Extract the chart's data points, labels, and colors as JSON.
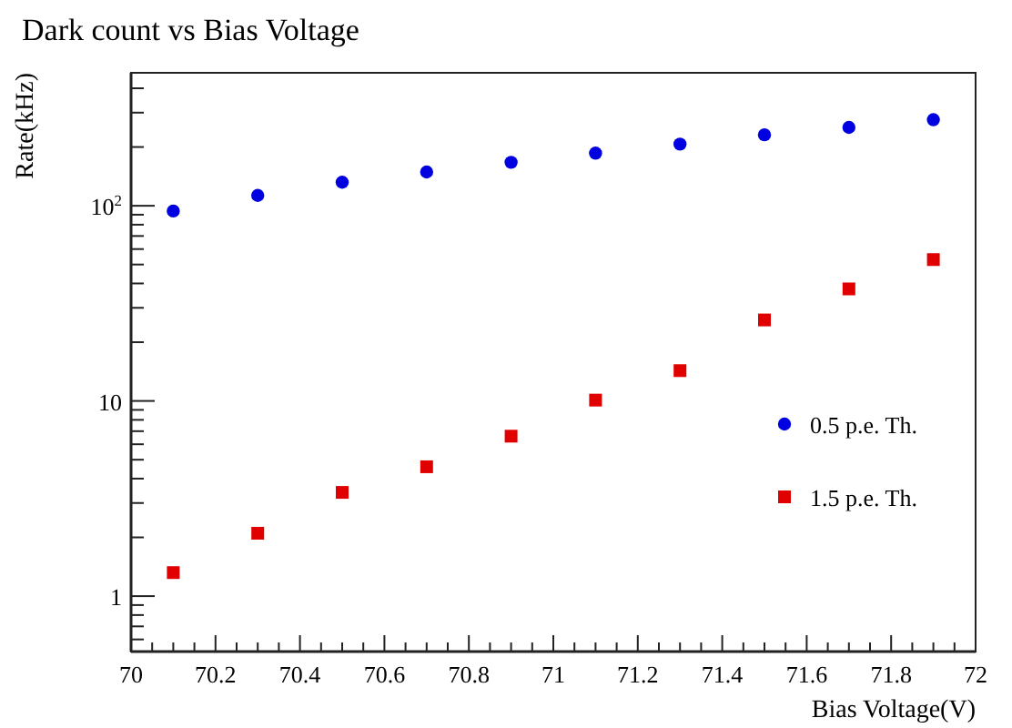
{
  "chart_data": {
    "type": "scatter",
    "title": "Dark count vs Bias Voltage",
    "xlabel": "Bias Voltage(V)",
    "ylabel": "Rate(kHz)",
    "x": [
      70.1,
      70.3,
      70.5,
      70.7,
      70.9,
      71.1,
      71.3,
      71.5,
      71.7,
      71.9
    ],
    "series": [
      {
        "name": "0.5 p.e. Th.",
        "color": "#0000e0",
        "marker": "circle",
        "values": [
          94,
          113,
          132,
          149,
          167,
          186,
          207,
          231,
          252,
          276
        ]
      },
      {
        "name": "1.5 p.e. Th.",
        "color": "#e00000",
        "marker": "square",
        "values": [
          1.32,
          2.1,
          3.4,
          4.6,
          6.6,
          10.1,
          14.3,
          26,
          37.5,
          53
        ]
      }
    ],
    "xlim": [
      70,
      72
    ],
    "xticks": [
      70,
      70.2,
      70.4,
      70.6,
      70.8,
      71,
      71.2,
      71.4,
      71.6,
      71.8,
      72
    ],
    "ylim": [
      0.52,
      480
    ],
    "yticks": [
      1,
      10,
      {
        "value": 100,
        "label": "10$^{2}$"
      }
    ],
    "log": "y",
    "grid": false,
    "legend": "bottom right"
  }
}
